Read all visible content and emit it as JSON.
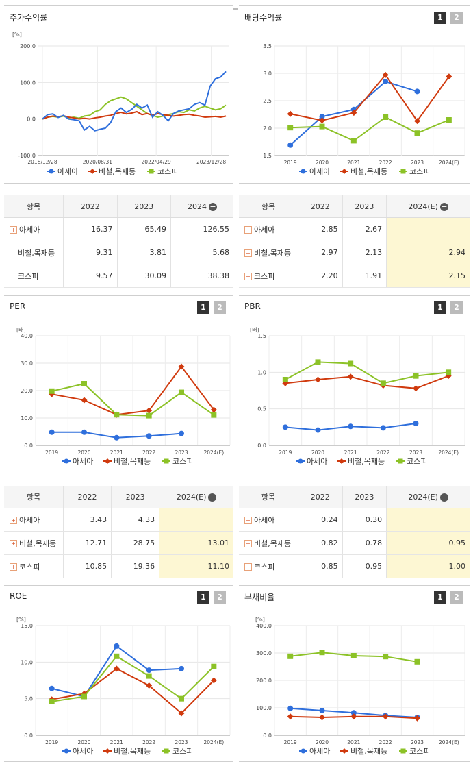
{
  "legend_labels": [
    "아세아",
    "비철,목재등",
    "코스피"
  ],
  "colors": {
    "asea": "#2f6fdc",
    "metal": "#d03a0e",
    "kospi": "#8cc227"
  },
  "panels": {
    "stock": {
      "title": "주가수익률",
      "unit": "[%]",
      "ticks_y": [
        "200.0",
        "100.0",
        "0.0",
        "-100.0"
      ],
      "ticks_x": [
        "2018/12/28",
        "2020/08/31",
        "2022/04/29",
        "2023/12/28"
      ]
    },
    "dividend": {
      "title": "배당수익률",
      "btn1": "1",
      "btn2": "2",
      "ticks_y": [
        "3.5",
        "3.0",
        "2.5",
        "2.0",
        "1.5"
      ],
      "ticks_x": [
        "2019",
        "2020",
        "2021",
        "2022",
        "2023",
        "2024(E)"
      ]
    },
    "per": {
      "title": "PER",
      "btn1": "1",
      "btn2": "2",
      "unit": "[배]",
      "ticks_y": [
        "40.0",
        "30.0",
        "20.0",
        "10.0",
        "0.0"
      ],
      "ticks_x": [
        "2019",
        "2020",
        "2021",
        "2022",
        "2023",
        "2024(E)"
      ]
    },
    "pbr": {
      "title": "PBR",
      "btn1": "1",
      "btn2": "2",
      "unit": "[배]",
      "ticks_y": [
        "1.5",
        "1.0",
        "0.5",
        "0.0"
      ],
      "ticks_x": [
        "2019",
        "2020",
        "2021",
        "2022",
        "2023",
        "2024(E)"
      ]
    },
    "roe": {
      "title": "ROE",
      "btn1": "1",
      "btn2": "2",
      "unit": "[%]",
      "ticks_y": [
        "15.0",
        "10.0",
        "5.0",
        "0.0"
      ],
      "ticks_x": [
        "2019",
        "2020",
        "2021",
        "2022",
        "2023",
        "2024(E)"
      ]
    },
    "debt": {
      "title": "부채비율",
      "btn1": "1",
      "btn2": "2",
      "unit": "[%]",
      "ticks_y": [
        "400.0",
        "300.0",
        "200.0",
        "100.0",
        "0.0"
      ],
      "ticks_x": [
        "2019",
        "2020",
        "2021",
        "2022",
        "2023",
        "2024(E)"
      ]
    }
  },
  "tables": {
    "stock": {
      "headers": [
        "항목",
        "2022",
        "2023",
        "2024"
      ],
      "rows": [
        {
          "label": "아세아",
          "values": [
            "16.37",
            "65.49",
            "126.55"
          ]
        },
        {
          "label": "비철,목재등",
          "values": [
            "9.31",
            "3.81",
            "5.68"
          ]
        },
        {
          "label": "코스피",
          "values": [
            "9.57",
            "30.09",
            "38.38"
          ]
        }
      ]
    },
    "dividend": {
      "headers": [
        "항목",
        "2022",
        "2023",
        "2024(E)"
      ],
      "rows": [
        {
          "label": "아세아",
          "values": [
            "2.85",
            "2.67",
            ""
          ]
        },
        {
          "label": "비철,목재등",
          "values": [
            "2.97",
            "2.13",
            "2.94"
          ]
        },
        {
          "label": "코스피",
          "values": [
            "2.20",
            "1.91",
            "2.15"
          ]
        }
      ]
    },
    "per": {
      "headers": [
        "항목",
        "2022",
        "2023",
        "2024(E)"
      ],
      "rows": [
        {
          "label": "아세아",
          "values": [
            "3.43",
            "4.33",
            ""
          ]
        },
        {
          "label": "비철,목재등",
          "values": [
            "12.71",
            "28.75",
            "13.01"
          ]
        },
        {
          "label": "코스피",
          "values": [
            "10.85",
            "19.36",
            "11.10"
          ]
        }
      ]
    },
    "pbr": {
      "headers": [
        "항목",
        "2022",
        "2023",
        "2024(E)"
      ],
      "rows": [
        {
          "label": "아세아",
          "values": [
            "0.24",
            "0.30",
            ""
          ]
        },
        {
          "label": "비철,목재등",
          "values": [
            "0.82",
            "0.78",
            "0.95"
          ]
        },
        {
          "label": "코스피",
          "values": [
            "0.85",
            "0.95",
            "1.00"
          ]
        }
      ]
    }
  },
  "chart_data": [
    {
      "id": "stock",
      "type": "line",
      "title": "주가수익률",
      "ylabel": "[%]",
      "ylim": [
        -100,
        200
      ],
      "x_ticks": [
        "2018/12/28",
        "2020/08/31",
        "2022/04/29",
        "2023/12/28"
      ],
      "series": [
        {
          "name": "아세아",
          "values": [
            0,
            12,
            14,
            4,
            10,
            0,
            -2,
            -5,
            -30,
            -20,
            -32,
            -28,
            -25,
            -10,
            20,
            30,
            18,
            26,
            40,
            30,
            38,
            5,
            20,
            10,
            -5,
            15,
            22,
            25,
            28,
            40,
            45,
            38,
            90,
            110,
            115,
            130
          ]
        },
        {
          "name": "비철,목재등",
          "values": [
            0,
            5,
            8,
            6,
            9,
            5,
            3,
            0,
            2,
            0,
            3,
            5,
            8,
            10,
            15,
            18,
            14,
            16,
            20,
            12,
            15,
            10,
            15,
            12,
            10,
            8,
            10,
            12,
            13,
            10,
            8,
            5,
            6,
            7,
            5,
            8
          ]
        },
        {
          "name": "코스피",
          "values": [
            0,
            5,
            7,
            5,
            8,
            3,
            5,
            2,
            8,
            10,
            20,
            25,
            40,
            50,
            55,
            60,
            55,
            45,
            35,
            25,
            15,
            10,
            5,
            8,
            12,
            15,
            20,
            18,
            25,
            22,
            30,
            35,
            30,
            25,
            28,
            38
          ]
        }
      ]
    },
    {
      "id": "dividend",
      "type": "line",
      "title": "배당수익률",
      "ylim": [
        1.5,
        3.5
      ],
      "categories": [
        "2019",
        "2020",
        "2021",
        "2022",
        "2023",
        "2024(E)"
      ],
      "series": [
        {
          "name": "아세아",
          "values": [
            1.69,
            2.21,
            2.34,
            2.85,
            2.67,
            null
          ]
        },
        {
          "name": "비철,목재등",
          "values": [
            2.26,
            2.14,
            2.28,
            2.97,
            2.13,
            2.94
          ]
        },
        {
          "name": "코스피",
          "values": [
            2.01,
            2.03,
            1.77,
            2.2,
            1.91,
            2.15
          ]
        }
      ]
    },
    {
      "id": "per",
      "type": "line",
      "title": "PER",
      "ylabel": "[배]",
      "ylim": [
        0,
        40
      ],
      "categories": [
        "2019",
        "2020",
        "2021",
        "2022",
        "2023",
        "2024(E)"
      ],
      "series": [
        {
          "name": "아세아",
          "values": [
            4.8,
            4.8,
            2.8,
            3.43,
            4.33,
            null
          ]
        },
        {
          "name": "비철,목재등",
          "values": [
            18.7,
            16.5,
            11.2,
            12.71,
            28.75,
            13.01
          ]
        },
        {
          "name": "코스피",
          "values": [
            19.8,
            22.5,
            11.2,
            10.85,
            19.36,
            11.1
          ]
        }
      ]
    },
    {
      "id": "pbr",
      "type": "line",
      "title": "PBR",
      "ylabel": "[배]",
      "ylim": [
        0,
        1.5
      ],
      "categories": [
        "2019",
        "2020",
        "2021",
        "2022",
        "2023",
        "2024(E)"
      ],
      "series": [
        {
          "name": "아세아",
          "values": [
            0.25,
            0.21,
            0.26,
            0.24,
            0.3,
            null
          ]
        },
        {
          "name": "비철,목재등",
          "values": [
            0.85,
            0.9,
            0.94,
            0.82,
            0.78,
            0.95
          ]
        },
        {
          "name": "코스피",
          "values": [
            0.9,
            1.14,
            1.12,
            0.85,
            0.95,
            1.0
          ]
        }
      ]
    },
    {
      "id": "roe",
      "type": "line",
      "title": "ROE",
      "ylabel": "[%]",
      "ylim": [
        0,
        15
      ],
      "categories": [
        "2019",
        "2020",
        "2021",
        "2022",
        "2023",
        "2024(E)"
      ],
      "series": [
        {
          "name": "아세아",
          "values": [
            6.4,
            5.3,
            12.2,
            8.9,
            9.1,
            null
          ]
        },
        {
          "name": "비철,목재등",
          "values": [
            4.9,
            5.7,
            9.1,
            6.8,
            3.0,
            7.5
          ]
        },
        {
          "name": "코스피",
          "values": [
            4.6,
            5.3,
            10.8,
            8.1,
            5.0,
            9.4
          ]
        }
      ]
    },
    {
      "id": "debt",
      "type": "line",
      "title": "부채비율",
      "ylabel": "[%]",
      "ylim": [
        0,
        400
      ],
      "categories": [
        "2019",
        "2020",
        "2021",
        "2022",
        "2023",
        "2024(E)"
      ],
      "series": [
        {
          "name": "아세아",
          "values": [
            98,
            90,
            82,
            72,
            65,
            null
          ]
        },
        {
          "name": "비철,목재등",
          "values": [
            68,
            65,
            68,
            68,
            62,
            null
          ]
        },
        {
          "name": "코스피",
          "values": [
            288,
            302,
            290,
            287,
            268,
            null
          ]
        }
      ]
    }
  ]
}
